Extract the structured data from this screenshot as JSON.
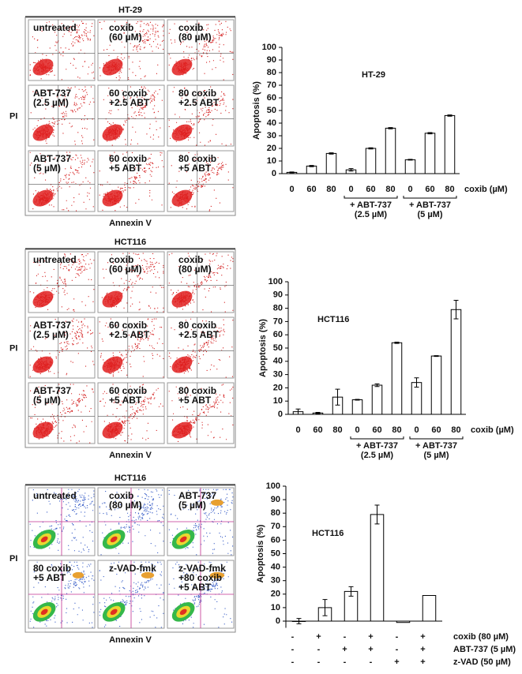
{
  "flow_panels": [
    {
      "title": "HT-29",
      "y_label": "PI",
      "x_label": "Annexin V",
      "panels": [
        [
          "untreated"
        ],
        [
          "coxib",
          "(60 µM)"
        ],
        [
          "coxib",
          "(80 µM)"
        ],
        [
          "ABT-737",
          "(2.5 µM)"
        ],
        [
          "60 coxib",
          "+2.5 ABT"
        ],
        [
          "80 coxib",
          "+2.5 ABT"
        ],
        [
          "ABT-737",
          "(5 µM)"
        ],
        [
          "60 coxib",
          "+5 ABT"
        ],
        [
          "80 coxib",
          "+5 ABT"
        ]
      ]
    },
    {
      "title": "HCT116",
      "y_label": "PI",
      "x_label": "Annexin V",
      "panels": [
        [
          "untreated"
        ],
        [
          "coxib",
          "(60 µM)"
        ],
        [
          "coxib",
          "(80 µM)"
        ],
        [
          "ABT-737",
          "(2.5 µM)"
        ],
        [
          "60 coxib",
          "+2.5 ABT"
        ],
        [
          "80 coxib",
          "+2.5 ABT"
        ],
        [
          "ABT-737",
          "(5 µM)"
        ],
        [
          "60 coxib",
          "+5 ABT"
        ],
        [
          "80 coxib",
          "+5 ABT"
        ]
      ]
    },
    {
      "title": "HCT116",
      "y_label": "PI",
      "x_label": "Annexin V",
      "panels": [
        [
          "untreated"
        ],
        [
          "coxib",
          "(80 µM)"
        ],
        [
          "ABT-737",
          "(5 µM)"
        ],
        [
          "80 coxib",
          "+5 ABT"
        ],
        [
          "z-VAD-fmk"
        ],
        [
          "z-VAD-fmk",
          "+80 coxib",
          "+5 ABT"
        ]
      ]
    }
  ],
  "chart_data": [
    {
      "type": "bar",
      "title": "HT-29",
      "y_label": "Apoptosis (%)",
      "x_unit_label": "coxib (µM)",
      "categories": [
        "0",
        "60",
        "80",
        "0",
        "60",
        "80",
        "0",
        "60",
        "80"
      ],
      "values": [
        1,
        6,
        16,
        3,
        20,
        36,
        11,
        32,
        46
      ],
      "errors": [
        0.3,
        0.5,
        0.5,
        1,
        0.5,
        0.5,
        0.3,
        0.5,
        0.5
      ],
      "groups": [
        {
          "label": "+ ABT-737",
          "sub": "(2.5 µM)"
        },
        {
          "label": "+ ABT-737",
          "sub": "(5 µM)"
        }
      ],
      "ylim": [
        0,
        100
      ],
      "yticks": [
        0,
        10,
        20,
        30,
        40,
        50,
        60,
        70,
        80,
        90,
        100
      ],
      "color": "#ffffff"
    },
    {
      "type": "bar",
      "title": "HCT116",
      "y_label": "Apoptosis (%)",
      "x_unit_label": "coxib (µM)",
      "categories": [
        "0",
        "60",
        "80",
        "0",
        "60",
        "80",
        "0",
        "60",
        "80"
      ],
      "values": [
        2,
        1,
        13,
        11,
        22,
        54,
        24,
        44,
        79
      ],
      "errors": [
        2,
        0.5,
        6,
        0.3,
        1,
        0.5,
        3.5,
        0.3,
        7
      ],
      "groups": [
        {
          "label": "+ ABT-737",
          "sub": "(2.5 µM)"
        },
        {
          "label": "+ ABT-737",
          "sub": "(5 µM)"
        }
      ],
      "ylim": [
        0,
        100
      ],
      "yticks": [
        0,
        10,
        20,
        30,
        40,
        50,
        60,
        70,
        80,
        90,
        100
      ],
      "color": "#ffffff"
    },
    {
      "type": "bar",
      "title": "HCT116",
      "y_label": "Apoptosis (%)",
      "categories": [
        null,
        null,
        null,
        null,
        null,
        null
      ],
      "values": [
        0,
        10,
        22,
        79,
        -1,
        19
      ],
      "errors": [
        2,
        6,
        3.5,
        7,
        0,
        0
      ],
      "condition_rows": [
        {
          "label": "coxib (80 µM)",
          "signs": [
            "-",
            "+",
            "-",
            "+",
            "-",
            "+"
          ]
        },
        {
          "label": "ABT-737 (5 µM)",
          "signs": [
            "-",
            "-",
            "+",
            "+",
            "-",
            "+"
          ]
        },
        {
          "label": "z-VAD (50 µM)",
          "signs": [
            "-",
            "-",
            "-",
            "-",
            "+",
            "+"
          ]
        }
      ],
      "ylim": [
        -5,
        100
      ],
      "yticks": [
        0,
        10,
        20,
        30,
        40,
        50,
        60,
        70,
        80,
        90,
        100
      ],
      "color": "#ffffff"
    }
  ]
}
